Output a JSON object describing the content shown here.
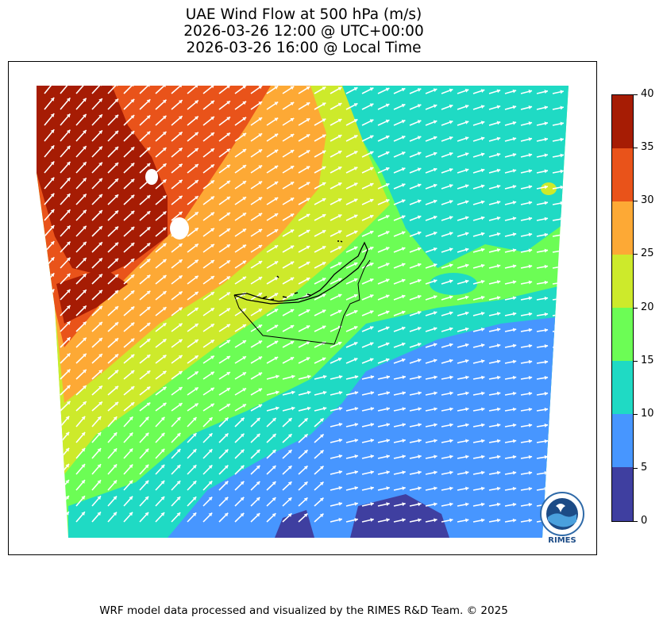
{
  "header": {
    "title_line1": "UAE Wind Flow at 500 hPa (m/s)",
    "title_line2": "2026-03-26 12:00 @ UTC+00:00",
    "title_line3": "2026-03-26 16:00 @ Local Time"
  },
  "colorbar": {
    "unit": "m/s",
    "ticks": [
      "0",
      "5",
      "10",
      "15",
      "20",
      "25",
      "30",
      "35",
      "40"
    ],
    "bins": [
      {
        "range": [
          0,
          5
        ],
        "color": "#3f3fa0"
      },
      {
        "range": [
          5,
          10
        ],
        "color": "#4796ff"
      },
      {
        "range": [
          10,
          15
        ],
        "color": "#1fdac4"
      },
      {
        "range": [
          15,
          20
        ],
        "color": "#6cfd55"
      },
      {
        "range": [
          20,
          25
        ],
        "color": "#cdea2b"
      },
      {
        "range": [
          25,
          30
        ],
        "color": "#fda935"
      },
      {
        "range": [
          30,
          35
        ],
        "color": "#e9531a"
      },
      {
        "range": [
          35,
          40
        ],
        "color": "#a61c04"
      }
    ]
  },
  "map": {
    "region": "UAE",
    "level": "500 hPa",
    "vector_color": "#ffffff",
    "boundary_color": "#000000"
  },
  "logo": {
    "text": "RIMES"
  },
  "footer": {
    "text": "WRF model data processed and visualized by the RIMES R&D Team. © 2025"
  }
}
